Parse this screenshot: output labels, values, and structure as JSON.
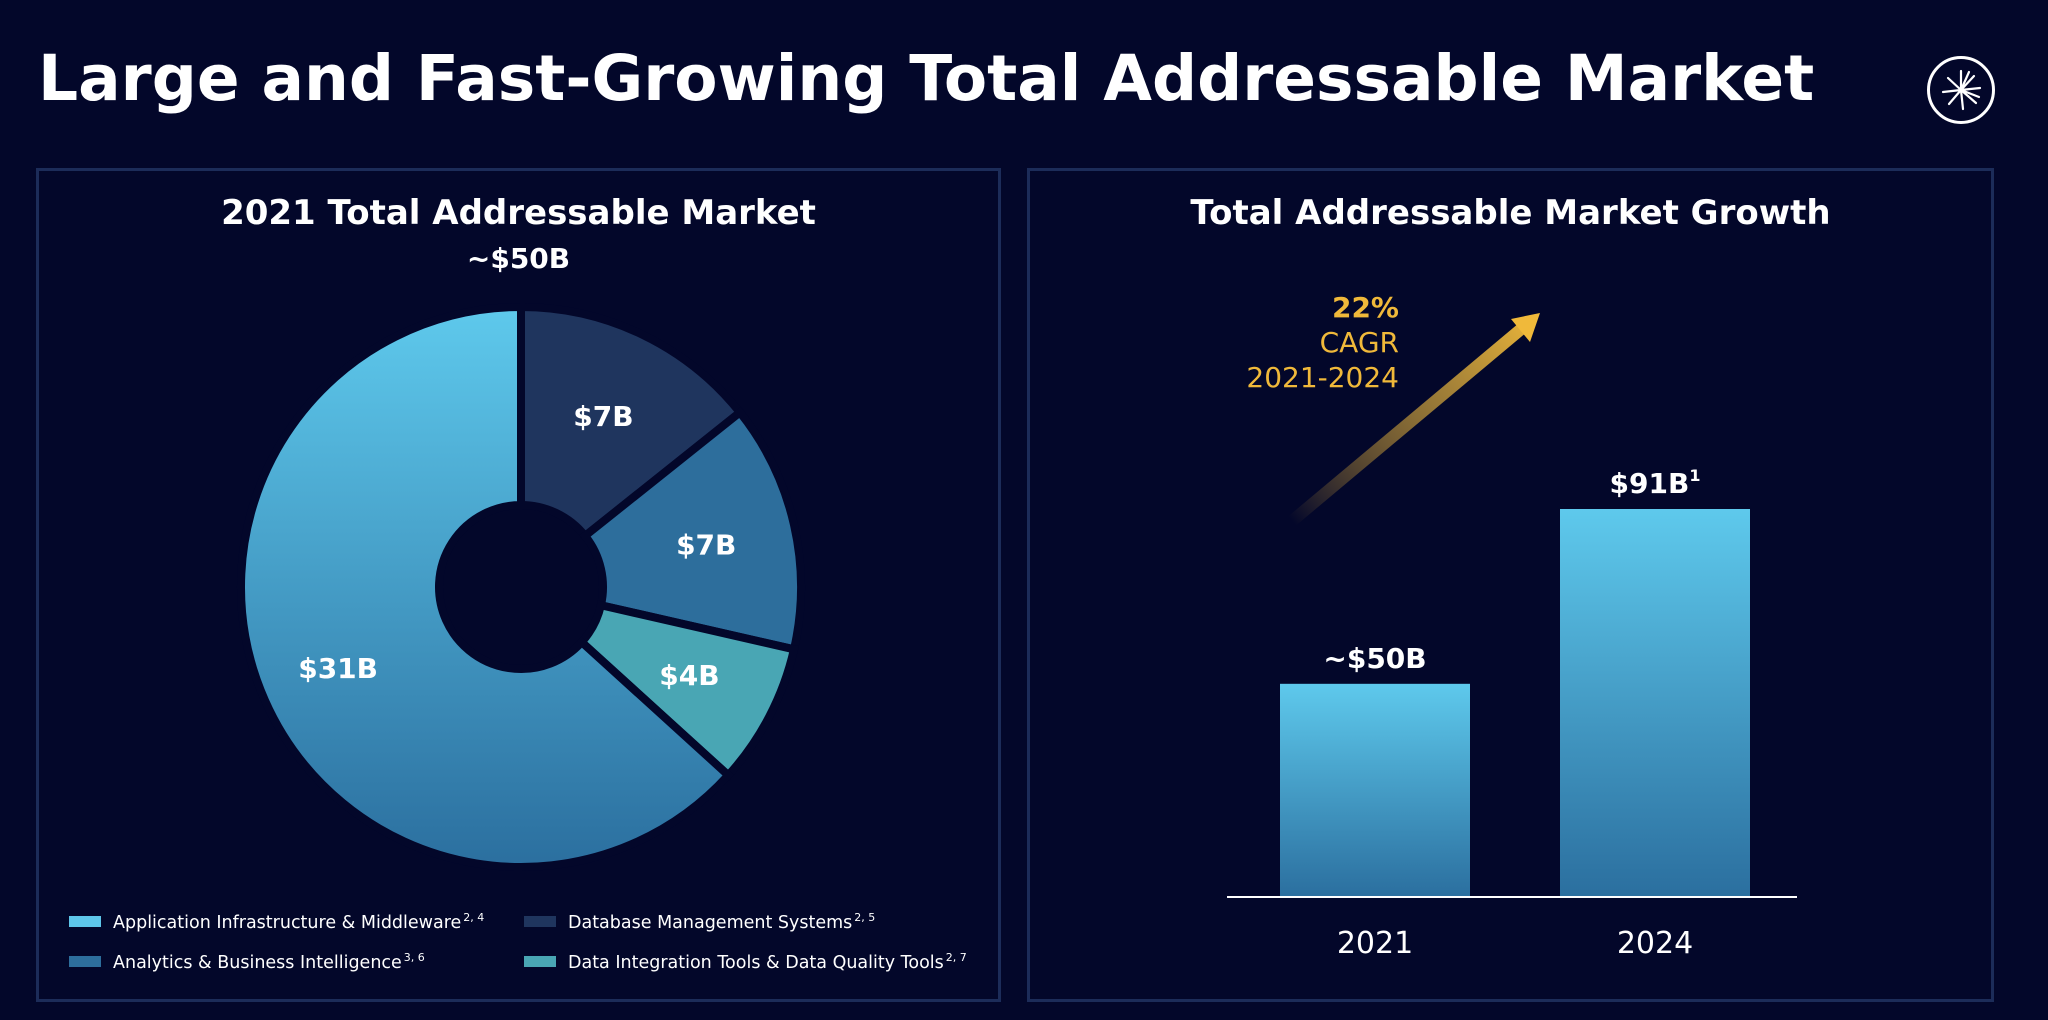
{
  "header": {
    "title": "Large and Fast-Growing Total Addressable Market",
    "logo_icon": "starburst-logo-icon"
  },
  "chart_data": [
    {
      "type": "pie",
      "title": "2021 Total Addressable Market",
      "total_label": "~$50B",
      "slices": [
        {
          "name": "Database Management Systems",
          "note": "2, 5",
          "value": 7,
          "label": "$7B",
          "color": "#1f355e"
        },
        {
          "name": "Analytics & Business Intelligence",
          "note": "3, 6",
          "value": 7,
          "label": "$7B",
          "color": "#2d6e9c"
        },
        {
          "name": "Data Integration Tools & Data Quality Tools",
          "note": "2, 7",
          "value": 4,
          "label": "$4B",
          "color": "#49a6b4"
        },
        {
          "name": "Application Infrastructure & Middleware",
          "note": "2, 4",
          "value": 31,
          "label": "$31B",
          "color": "#5ec6ea"
        }
      ],
      "legend_order": [
        3,
        0,
        1,
        2
      ],
      "legend_placement": "bottom"
    },
    {
      "type": "bar",
      "title": "Total Addressable Market Growth",
      "categories": [
        "2021",
        "2024"
      ],
      "values": [
        50,
        91
      ],
      "value_labels": [
        "~$50B",
        "$91B"
      ],
      "value_label_notes": [
        "",
        "1"
      ],
      "ylim": [
        0,
        91
      ],
      "colors": {
        "top": "#5ec9ec",
        "bottom": "#2b6f9f"
      },
      "annotation": {
        "value": "22%",
        "text": "CAGR",
        "period": "2021-2024",
        "color": "#f0b93a"
      }
    }
  ]
}
